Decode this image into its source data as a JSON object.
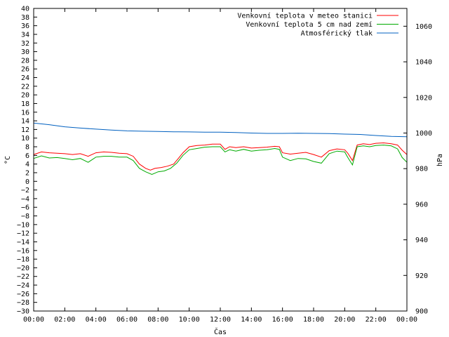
{
  "chart_data": {
    "type": "line",
    "xlabel": "Čas",
    "ylabel_left": "°C",
    "ylabel_right": "hPa",
    "x_ticks": [
      "00:00",
      "02:00",
      "04:00",
      "06:00",
      "08:00",
      "10:00",
      "12:00",
      "14:00",
      "16:00",
      "18:00",
      "20:00",
      "22:00",
      "00:00"
    ],
    "x_range_hours": [
      0,
      24
    ],
    "y_left_range": [
      -30,
      40
    ],
    "y_left_step": 2,
    "y_right_range": [
      900,
      1070
    ],
    "y_right_ticks": [
      900,
      920,
      940,
      960,
      980,
      1000,
      1020,
      1040,
      1060
    ],
    "grid": false,
    "legend_position": "top-right",
    "series": [
      {
        "name": "Venkovní teplota v meteo stanici",
        "color": "#ff0000",
        "axis": "left",
        "points": [
          [
            0,
            6.2
          ],
          [
            0.5,
            6.8
          ],
          [
            1,
            6.6
          ],
          [
            1.5,
            6.5
          ],
          [
            2,
            6.4
          ],
          [
            2.5,
            6.2
          ],
          [
            3,
            6.4
          ],
          [
            3.5,
            5.8
          ],
          [
            4,
            6.6
          ],
          [
            4.5,
            6.8
          ],
          [
            5,
            6.7
          ],
          [
            5.5,
            6.5
          ],
          [
            6,
            6.4
          ],
          [
            6.4,
            5.8
          ],
          [
            6.8,
            4.0
          ],
          [
            7.2,
            3.0
          ],
          [
            7.5,
            2.6
          ],
          [
            7.8,
            3.0
          ],
          [
            8.2,
            3.2
          ],
          [
            8.6,
            3.5
          ],
          [
            9,
            4.0
          ],
          [
            9.3,
            5.3
          ],
          [
            9.6,
            6.6
          ],
          [
            10,
            8.0
          ],
          [
            10.5,
            8.3
          ],
          [
            11,
            8.4
          ],
          [
            11.5,
            8.6
          ],
          [
            12,
            8.6
          ],
          [
            12.3,
            7.4
          ],
          [
            12.6,
            8.0
          ],
          [
            13,
            7.8
          ],
          [
            13.5,
            8.0
          ],
          [
            14,
            7.7
          ],
          [
            14.5,
            7.8
          ],
          [
            15,
            7.9
          ],
          [
            15.5,
            8.1
          ],
          [
            15.8,
            8.0
          ],
          [
            16,
            6.6
          ],
          [
            16.5,
            6.3
          ],
          [
            17,
            6.5
          ],
          [
            17.5,
            6.7
          ],
          [
            18,
            6.2
          ],
          [
            18.5,
            5.6
          ],
          [
            19,
            7.1
          ],
          [
            19.5,
            7.5
          ],
          [
            20,
            7.3
          ],
          [
            20.2,
            6.5
          ],
          [
            20.5,
            4.8
          ],
          [
            20.8,
            8.4
          ],
          [
            21.2,
            8.7
          ],
          [
            21.6,
            8.5
          ],
          [
            22,
            8.8
          ],
          [
            22.5,
            8.9
          ],
          [
            23,
            8.7
          ],
          [
            23.4,
            8.4
          ],
          [
            23.7,
            7.2
          ],
          [
            24,
            6.2
          ]
        ]
      },
      {
        "name": "Venkovní teplota 5 cm nad zemí",
        "color": "#00aa00",
        "axis": "left",
        "points": [
          [
            0,
            5.3
          ],
          [
            0.5,
            5.9
          ],
          [
            1,
            5.4
          ],
          [
            1.5,
            5.5
          ],
          [
            2,
            5.3
          ],
          [
            2.5,
            5.0
          ],
          [
            3,
            5.3
          ],
          [
            3.5,
            4.4
          ],
          [
            4,
            5.6
          ],
          [
            4.5,
            5.8
          ],
          [
            5,
            5.8
          ],
          [
            5.5,
            5.6
          ],
          [
            6,
            5.6
          ],
          [
            6.4,
            4.8
          ],
          [
            6.8,
            3.0
          ],
          [
            7.2,
            2.2
          ],
          [
            7.6,
            1.6
          ],
          [
            8,
            2.2
          ],
          [
            8.4,
            2.4
          ],
          [
            8.8,
            3.0
          ],
          [
            9.2,
            4.2
          ],
          [
            9.6,
            6.0
          ],
          [
            10,
            7.3
          ],
          [
            10.5,
            7.6
          ],
          [
            11,
            7.9
          ],
          [
            11.5,
            8.0
          ],
          [
            12,
            8.0
          ],
          [
            12.3,
            6.8
          ],
          [
            12.6,
            7.3
          ],
          [
            13,
            7.0
          ],
          [
            13.5,
            7.4
          ],
          [
            14,
            7.0
          ],
          [
            14.5,
            7.2
          ],
          [
            15,
            7.3
          ],
          [
            15.5,
            7.6
          ],
          [
            15.8,
            7.4
          ],
          [
            16,
            5.6
          ],
          [
            16.5,
            4.8
          ],
          [
            17,
            5.3
          ],
          [
            17.5,
            5.2
          ],
          [
            18,
            4.6
          ],
          [
            18.5,
            4.2
          ],
          [
            19,
            6.4
          ],
          [
            19.5,
            7.0
          ],
          [
            20,
            6.8
          ],
          [
            20.2,
            5.5
          ],
          [
            20.5,
            3.8
          ],
          [
            20.8,
            8.0
          ],
          [
            21.2,
            8.2
          ],
          [
            21.6,
            8.0
          ],
          [
            22,
            8.3
          ],
          [
            22.5,
            8.4
          ],
          [
            23,
            8.2
          ],
          [
            23.4,
            7.5
          ],
          [
            23.7,
            5.5
          ],
          [
            24,
            4.4
          ]
        ]
      },
      {
        "name": "Atmosférický tlak",
        "color": "#0060c0",
        "axis": "right",
        "points": [
          [
            0,
            1005.6
          ],
          [
            1,
            1004.7
          ],
          [
            2,
            1003.5
          ],
          [
            3,
            1002.8
          ],
          [
            4,
            1002.2
          ],
          [
            5,
            1001.7
          ],
          [
            6,
            1001.2
          ],
          [
            7,
            1001.0
          ],
          [
            8,
            1000.9
          ],
          [
            9,
            1000.7
          ],
          [
            10,
            1000.6
          ],
          [
            11,
            1000.5
          ],
          [
            12,
            1000.5
          ],
          [
            13,
            1000.3
          ],
          [
            14,
            1000.0
          ],
          [
            15,
            999.8
          ],
          [
            16,
            999.8
          ],
          [
            17,
            999.9
          ],
          [
            18,
            999.8
          ],
          [
            19,
            999.7
          ],
          [
            20,
            999.4
          ],
          [
            21,
            999.2
          ],
          [
            22,
            998.6
          ],
          [
            23,
            998.1
          ],
          [
            24,
            997.9
          ]
        ]
      }
    ]
  }
}
